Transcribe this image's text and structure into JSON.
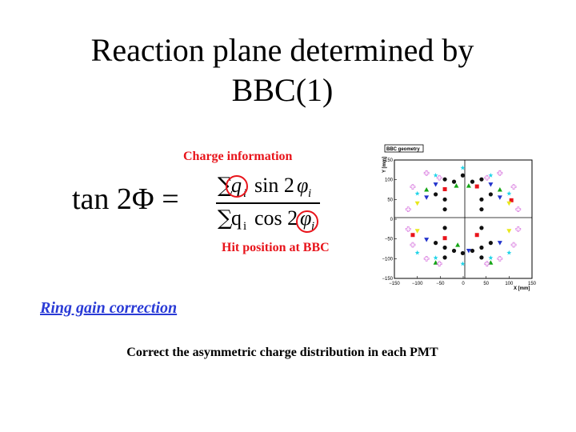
{
  "slide": {
    "title_line1": "Reaction plane determined by",
    "title_line2": "BBC(1)",
    "charge_label": "Charge information",
    "hit_label": "Hit position at BBC",
    "ring_link": "Ring gain correction",
    "correct_text": "Correct the asymmetric charge distribution in each PMT"
  },
  "formula": {
    "lhs": "tan 2Φ =",
    "sum": "∑",
    "q": "q",
    "i": "i",
    "sin": "sin 2",
    "cos": "cos 2",
    "phi": "φ",
    "circle_color": "#e8141b"
  },
  "plot": {
    "legend": "BBC geometry",
    "ylabel": "Y [mm]",
    "xlabel": "X [mm]"
  },
  "chart_data": {
    "type": "scatter",
    "title": "BBC geometry",
    "xlabel": "X [mm]",
    "ylabel": "Y [mm]",
    "xlim": [
      -150,
      150
    ],
    "ylim": [
      -150,
      150
    ],
    "xticks": [
      "−150",
      "−100",
      "−50",
      "0",
      "50",
      "100",
      "150"
    ],
    "yticks": [
      "150",
      "100",
      "50",
      "0",
      "−50",
      "−100",
      "−150"
    ],
    "series": [
      {
        "marker": "square",
        "color": "#e8141b",
        "points": [
          [
            -40,
            76
          ],
          [
            30,
            83
          ],
          [
            -40,
            -48
          ],
          [
            30,
            -40
          ],
          [
            105,
            48
          ],
          [
            -110,
            -40
          ]
        ]
      },
      {
        "marker": "circle",
        "color": "#111111",
        "points": [
          [
            -40,
            101
          ],
          [
            -40,
            50
          ],
          [
            -40,
            25
          ],
          [
            -40,
            -22
          ],
          [
            -40,
            -72
          ],
          [
            -40,
            -97
          ],
          [
            -1,
            111
          ],
          [
            -1,
            -86
          ],
          [
            40,
            101
          ],
          [
            40,
            50
          ],
          [
            40,
            25
          ],
          [
            40,
            -22
          ],
          [
            40,
            -72
          ],
          [
            40,
            -97
          ],
          [
            -20,
            95
          ],
          [
            20,
            95
          ],
          [
            -20,
            -80
          ],
          [
            20,
            -80
          ],
          [
            -60,
            63
          ],
          [
            60,
            63
          ],
          [
            -60,
            -60
          ],
          [
            60,
            -60
          ]
        ]
      },
      {
        "marker": "triangle-down",
        "color": "#2233cc",
        "points": [
          [
            -60,
            88
          ],
          [
            60,
            88
          ],
          [
            -80,
            -52
          ],
          [
            80,
            -60
          ],
          [
            -80,
            55
          ],
          [
            80,
            55
          ],
          [
            12,
            -80
          ]
        ]
      },
      {
        "marker": "triangle-up",
        "color": "#14a614",
        "points": [
          [
            -15,
            85
          ],
          [
            12,
            85
          ],
          [
            -80,
            75
          ],
          [
            80,
            75
          ],
          [
            -12,
            -65
          ],
          [
            -60,
            -110
          ],
          [
            60,
            -110
          ]
        ]
      },
      {
        "marker": "star",
        "color": "#1fd4e8",
        "points": [
          [
            -1,
            130
          ],
          [
            -1,
            -113
          ],
          [
            -100,
            65
          ],
          [
            100,
            65
          ],
          [
            -100,
            -85
          ],
          [
            100,
            -85
          ],
          [
            -60,
            111
          ],
          [
            60,
            111
          ],
          [
            -60,
            -98
          ],
          [
            60,
            -98
          ]
        ]
      },
      {
        "marker": "open-cross",
        "color": "#d46bdc",
        "points": [
          [
            -52,
            105
          ],
          [
            52,
            105
          ],
          [
            -80,
            117
          ],
          [
            80,
            117
          ],
          [
            -110,
            82
          ],
          [
            110,
            82
          ],
          [
            -120,
            25
          ],
          [
            120,
            25
          ],
          [
            -120,
            -25
          ],
          [
            120,
            -25
          ],
          [
            -110,
            -65
          ],
          [
            110,
            -65
          ],
          [
            -80,
            -100
          ],
          [
            80,
            -100
          ],
          [
            -52,
            -113
          ],
          [
            52,
            -113
          ]
        ]
      },
      {
        "marker": "triangle-down",
        "color": "#e8e81b",
        "points": [
          [
            -100,
            40
          ],
          [
            100,
            40
          ],
          [
            -100,
            -30
          ],
          [
            100,
            -30
          ]
        ]
      }
    ]
  }
}
